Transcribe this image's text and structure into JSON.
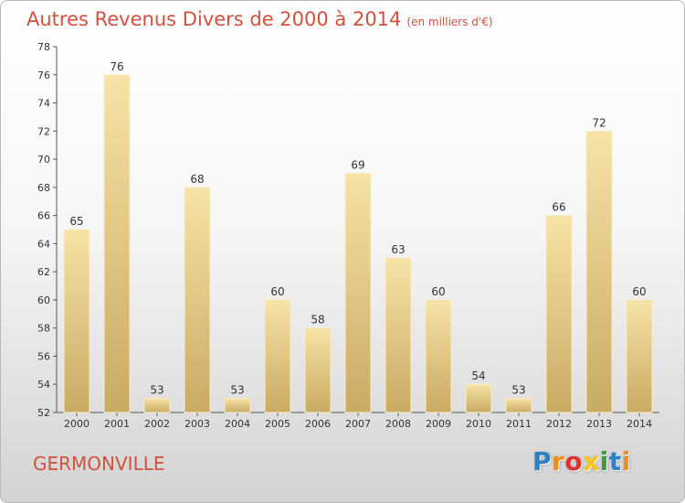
{
  "title": "Autres Revenus Divers de 2000 à 2014",
  "title_unit": "(en milliers d'€)",
  "commune": "GERMONVILLE",
  "logo": {
    "letters": [
      "P",
      "r",
      "o",
      "x",
      "i",
      "t",
      "i"
    ],
    "colors": [
      "#2e7fc4",
      "#f08c1e",
      "#e0312e",
      "#f5c518",
      "#3aa035",
      "#2e7fc4",
      "#f08c1e"
    ]
  },
  "colors": {
    "title": "#d2503e",
    "bar_light": "#f6e3a6",
    "bar_dark": "#c9aa62"
  },
  "chart_data": {
    "type": "bar",
    "title": "Autres Revenus Divers de 2000 à 2014",
    "categories": [
      "2000",
      "2001",
      "2002",
      "2003",
      "2004",
      "2005",
      "2006",
      "2007",
      "2008",
      "2009",
      "2010",
      "2011",
      "2012",
      "2013",
      "2014"
    ],
    "values": [
      65,
      76,
      53,
      68,
      53,
      60,
      58,
      69,
      63,
      60,
      54,
      53,
      66,
      72,
      60
    ],
    "ylim": [
      52,
      78
    ],
    "yticks": [
      52,
      54,
      56,
      58,
      60,
      62,
      64,
      66,
      68,
      70,
      72,
      74,
      76,
      78
    ],
    "grid": false,
    "data_labels": true
  }
}
